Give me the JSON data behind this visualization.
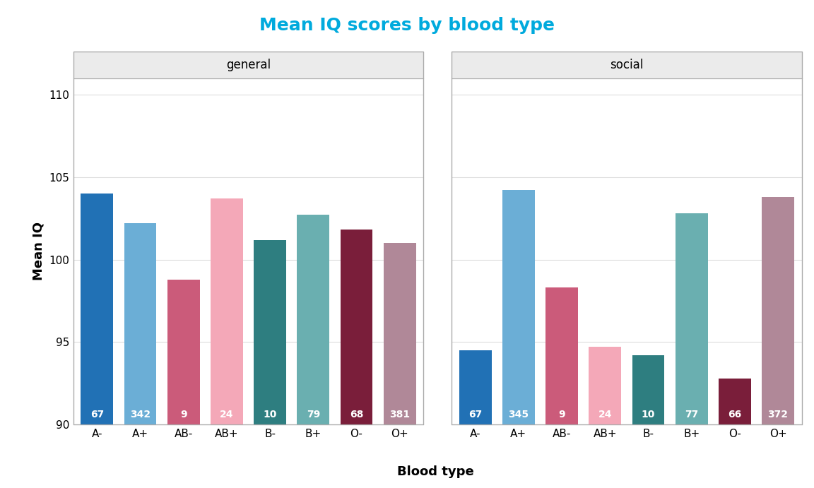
{
  "title": "Mean IQ scores by blood type",
  "xlabel": "Blood type",
  "ylabel": "Mean IQ",
  "ylim": [
    90,
    111
  ],
  "yticks": [
    90,
    95,
    100,
    105,
    110
  ],
  "categories": [
    "A-",
    "A+",
    "AB-",
    "AB+",
    "B-",
    "B+",
    "O-",
    "O+"
  ],
  "panels": [
    "general",
    "social"
  ],
  "values": {
    "general": [
      104.0,
      102.2,
      98.8,
      103.7,
      101.2,
      102.7,
      101.8,
      101.0
    ],
    "social": [
      94.5,
      104.2,
      98.3,
      94.7,
      94.2,
      102.8,
      92.8,
      103.8
    ]
  },
  "counts": {
    "general": [
      67,
      342,
      9,
      24,
      10,
      79,
      68,
      381
    ],
    "social": [
      67,
      345,
      9,
      24,
      10,
      77,
      66,
      372
    ]
  },
  "bar_colors": [
    "#2171b5",
    "#6baed6",
    "#cb5b7a",
    "#f4a8b8",
    "#2e7e80",
    "#6aafb0",
    "#7a1e3a",
    "#b08898"
  ],
  "plot_bg": "#ffffff",
  "panel_header_bg": "#ebebeb",
  "panel_border_color": "#aaaaaa",
  "grid_color": "#dddddd",
  "title_color": "#00aadd",
  "label_color": "white",
  "label_fontsize": 10,
  "title_fontsize": 18,
  "axis_label_fontsize": 13,
  "tick_fontsize": 11,
  "panel_label_fontsize": 12
}
